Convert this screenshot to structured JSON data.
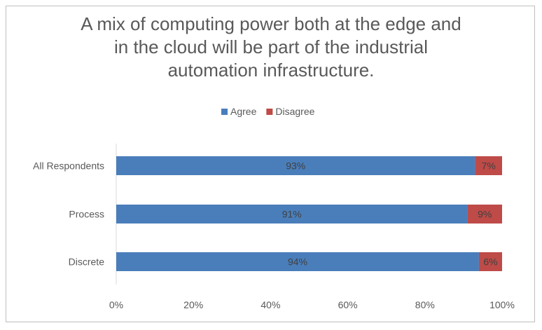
{
  "chart_data": {
    "type": "bar",
    "orientation": "horizontal",
    "stacked": true,
    "title_lines": [
      "A mix of computing power both at the edge and",
      "in the cloud will be part of the industrial",
      "automation infrastructure."
    ],
    "categories": [
      "All Respondents",
      "Process",
      "Discrete"
    ],
    "series": [
      {
        "name": "Agree",
        "color": "#4a7ebb",
        "values": [
          93,
          91,
          94
        ],
        "labels": [
          "93%",
          "91%",
          "94%"
        ]
      },
      {
        "name": "Disagree",
        "color": "#be4b48",
        "values": [
          7,
          9,
          6
        ],
        "labels": [
          "7%",
          "9%",
          "6%"
        ]
      }
    ],
    "xlim": [
      0,
      100
    ],
    "xticks": [
      "0%",
      "20%",
      "40%",
      "60%",
      "80%",
      "100%"
    ],
    "xtick_values": [
      0,
      20,
      40,
      60,
      80,
      100
    ],
    "grid": false,
    "legend_position": "top"
  }
}
